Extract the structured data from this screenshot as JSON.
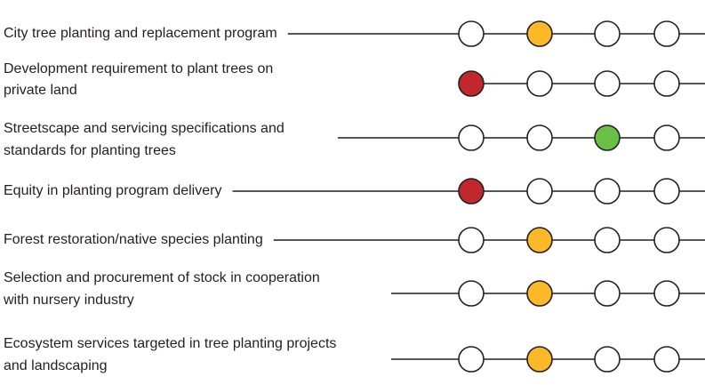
{
  "rows": [
    {
      "label": [
        "City tree planting and replacement program"
      ],
      "level": 2,
      "color": "#fbb829"
    },
    {
      "label": [
        "Development requirement to plant trees on",
        "private land"
      ],
      "level": 1,
      "color": "#c1272d"
    },
    {
      "label": [
        "Streetscape and servicing specifications and",
        "standards for planting trees"
      ],
      "level": 3,
      "color": "#6abf45"
    },
    {
      "label": [
        "Equity in planting program delivery"
      ],
      "level": 1,
      "color": "#c1272d"
    },
    {
      "label": [
        "Forest restoration/native species planting"
      ],
      "level": 2,
      "color": "#fbb829"
    },
    {
      "label": [
        "Selection and procurement of stock in cooperation",
        "with nursery industry"
      ],
      "level": 2,
      "color": "#fbb829"
    },
    {
      "label": [
        "Ecosystem services targeted in tree planting projects",
        "and landscaping"
      ],
      "level": 2,
      "color": "#fbb829"
    }
  ]
}
